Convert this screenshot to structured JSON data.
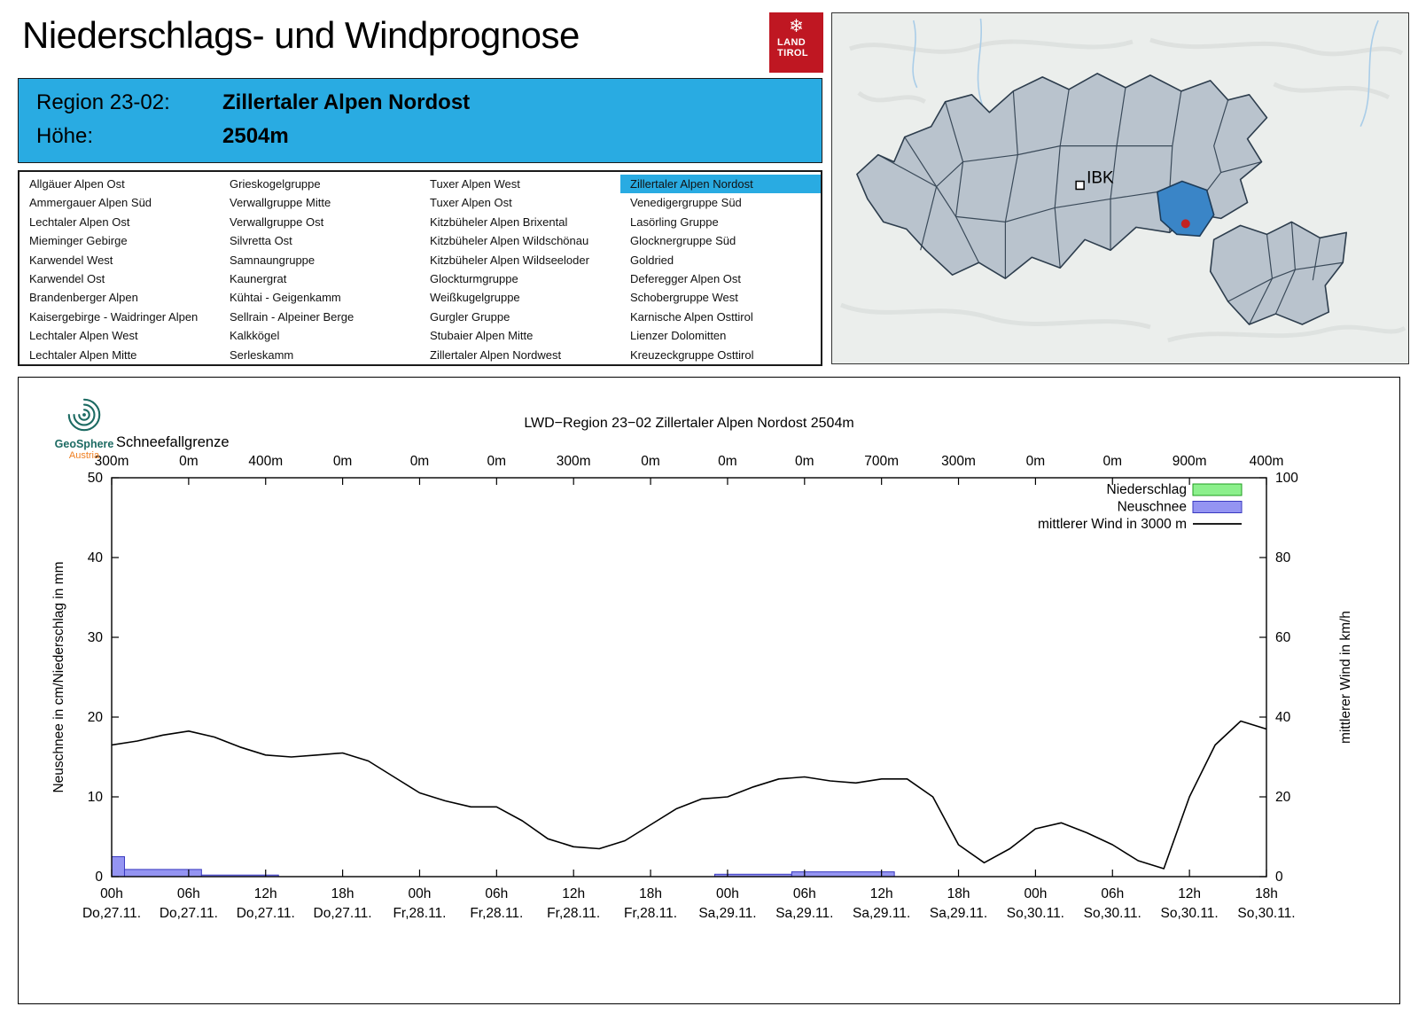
{
  "header": {
    "title": "Niederschlags- und Windprognose",
    "logo_line1": "LAND",
    "logo_line2": "TIROL"
  },
  "region_info": {
    "region_label": "Region 23-02:",
    "region_value": "Zillertaler Alpen Nordost",
    "altitude_label": "Höhe:",
    "altitude_value": "2504m"
  },
  "region_list": {
    "selected": "Zillertaler Alpen Nordost",
    "columns": [
      [
        "Allgäuer Alpen Ost",
        "Ammergauer Alpen Süd",
        "Lechtaler Alpen Ost",
        "Mieminger Gebirge",
        "Karwendel West",
        "Karwendel Ost",
        "Brandenberger Alpen",
        "Kaisergebirge - Waidringer Alpen",
        "Lechtaler Alpen West",
        "Lechtaler Alpen Mitte"
      ],
      [
        "Grieskogelgruppe",
        "Verwallgruppe Mitte",
        "Verwallgruppe Ost",
        "Silvretta Ost",
        "Samnaungruppe",
        "Kaunergrat",
        "Kühtai - Geigenkamm",
        "Sellrain - Alpeiner Berge",
        "Kalkkögel",
        "Serleskamm"
      ],
      [
        "Tuxer Alpen West",
        "Tuxer Alpen Ost",
        "Kitzbüheler Alpen Brixental",
        "Kitzbüheler Alpen Wildschönau",
        "Kitzbüheler Alpen Wildseeloder",
        "Glockturmgruppe",
        "Weißkugelgruppe",
        "Gurgler Gruppe",
        "Stubaier Alpen Mitte",
        "Zillertaler Alpen Nordwest"
      ],
      [
        "Zillertaler Alpen Nordost",
        "Venedigergruppe Süd",
        "Lasörling Gruppe",
        "Glocknergruppe Süd",
        "Goldried",
        "Deferegger Alpen Ost",
        "Schobergruppe West",
        "Karnische Alpen Osttirol",
        "Lienzer Dolomitten",
        "Kreuzeckgruppe Osttirol"
      ]
    ]
  },
  "map": {
    "city_label": "IBK",
    "highlight_color": "#3a85c7",
    "region_fill": "#b9c3cd",
    "dot_color": "#c32222"
  },
  "branding": {
    "geosphere_line1": "GeoSphere",
    "geosphere_line2": "Austria"
  },
  "colors": {
    "accent": "#29abe2",
    "logo_red": "#bf1722"
  },
  "chart_data": {
    "type": "line+bar",
    "title": "LWD−Region 23−02 Zillertaler Alpen Nordost 2504m",
    "top_axis_label": "Schneefallgrenze",
    "snowline_values": [
      "300m",
      "0m",
      "400m",
      "0m",
      "0m",
      "0m",
      "300m",
      "0m",
      "0m",
      "0m",
      "700m",
      "300m",
      "0m",
      "0m",
      "900m",
      "400m"
    ],
    "x_ticks": [
      {
        "hour": "00h",
        "date": "Do,27.11."
      },
      {
        "hour": "06h",
        "date": "Do,27.11."
      },
      {
        "hour": "12h",
        "date": "Do,27.11."
      },
      {
        "hour": "18h",
        "date": "Do,27.11."
      },
      {
        "hour": "00h",
        "date": "Fr,28.11."
      },
      {
        "hour": "06h",
        "date": "Fr,28.11."
      },
      {
        "hour": "12h",
        "date": "Fr,28.11."
      },
      {
        "hour": "18h",
        "date": "Fr,28.11."
      },
      {
        "hour": "00h",
        "date": "Sa,29.11."
      },
      {
        "hour": "06h",
        "date": "Sa,29.11."
      },
      {
        "hour": "12h",
        "date": "Sa,29.11."
      },
      {
        "hour": "18h",
        "date": "Sa,29.11."
      },
      {
        "hour": "00h",
        "date": "So,30.11."
      },
      {
        "hour": "06h",
        "date": "So,30.11."
      },
      {
        "hour": "12h",
        "date": "So,30.11."
      },
      {
        "hour": "18h",
        "date": "So,30.11."
      }
    ],
    "x_range_hours": [
      0,
      90
    ],
    "ylabel_left": "Neuschnee in cm/Niederschlag in mm",
    "ylabel_right": "mittlerer Wind in km/h",
    "ylim_left": [
      0,
      50
    ],
    "ylim_right": [
      0,
      100
    ],
    "y_ticks_left": [
      0,
      10,
      20,
      30,
      40,
      50
    ],
    "y_ticks_right": [
      0,
      20,
      40,
      60,
      80,
      100
    ],
    "grid": false,
    "legend_position": "top-right-inside",
    "legend": [
      {
        "label": "Niederschlag",
        "type": "box",
        "fill": "#8cf08c",
        "stroke": "#1f9e1f"
      },
      {
        "label": "Neuschnee",
        "type": "box",
        "fill": "#9494f2",
        "stroke": "#3a3ac0"
      },
      {
        "label": "mittlerer Wind in 3000 m",
        "type": "line",
        "stroke": "#000000"
      }
    ],
    "wind_series": {
      "name": "mittlerer Wind in 3000 m",
      "x_hours": [
        0,
        2,
        4,
        6,
        8,
        10,
        12,
        14,
        16,
        18,
        20,
        22,
        24,
        26,
        28,
        30,
        32,
        34,
        36,
        38,
        40,
        42,
        44,
        46,
        48,
        50,
        52,
        54,
        56,
        58,
        60,
        62,
        64,
        66,
        68,
        70,
        72,
        74,
        76,
        78,
        80,
        82,
        84,
        86,
        88,
        90
      ],
      "values_kmh": [
        33,
        34,
        35.5,
        36.5,
        35,
        32.5,
        30.5,
        30,
        30.5,
        31,
        29,
        25,
        21,
        19,
        17.5,
        17.5,
        14,
        9.5,
        7.5,
        7,
        9,
        13,
        17,
        19.5,
        20,
        22.5,
        24.5,
        25,
        24,
        23.5,
        24.5,
        24.5,
        20,
        8,
        3.5,
        7,
        12,
        13.5,
        11,
        8,
        4,
        2,
        20,
        33,
        39,
        37
      ]
    },
    "neuschnee_bars": [
      {
        "from": 0,
        "to": 1,
        "value": 2.5
      },
      {
        "from": 1,
        "to": 7,
        "value": 0.9
      },
      {
        "from": 7,
        "to": 13,
        "value": 0.2
      },
      {
        "from": 47,
        "to": 53,
        "value": 0.3
      },
      {
        "from": 53,
        "to": 61,
        "value": 0.6
      }
    ],
    "niederschlag_bars": []
  }
}
